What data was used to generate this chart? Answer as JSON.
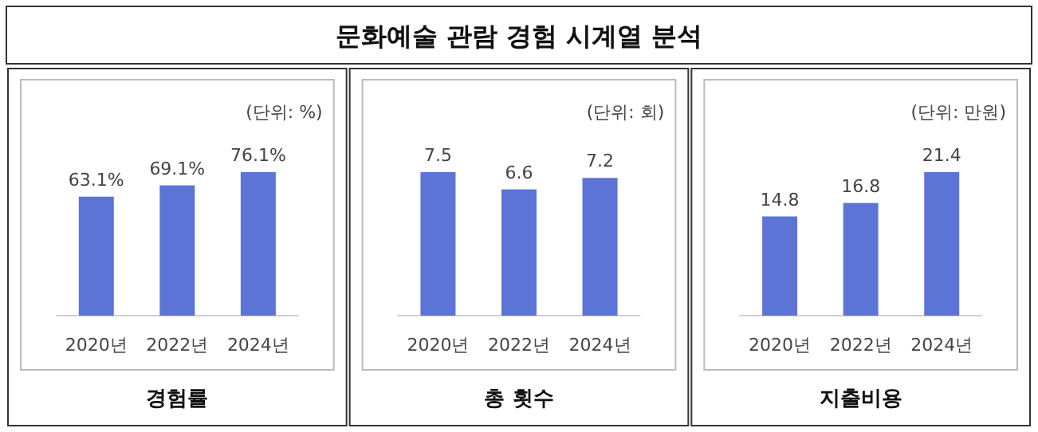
{
  "chart_data": [
    {
      "type": "other",
      "title": "문화예술 관람 경험 시계열 분석"
    },
    {
      "type": "bar",
      "xlabel": "경험률",
      "annotations": [
        "(단위: %)"
      ],
      "categories": [
        "2020년",
        "2022년",
        "2024년"
      ],
      "values": [
        63.1,
        69.1,
        76.1
      ],
      "color": "#5b74d6",
      "data_labels": true,
      "value_labels": [
        "63.1%",
        "69.1%",
        "76.1%"
      ]
    },
    {
      "type": "bar",
      "xlabel": "총 횟수",
      "annotations": [
        "(단위: 회)"
      ],
      "categories": [
        "2020년",
        "2022년",
        "2024년"
      ],
      "values": [
        7.5,
        6.6,
        7.2
      ],
      "color": "#5b74d6",
      "data_labels": true
    },
    {
      "type": "bar",
      "xlabel": "지출비용",
      "annotations": [
        "(단위: 만원)"
      ],
      "categories": [
        "2020년",
        "2022년",
        "2024년"
      ],
      "values": [
        14.8,
        16.8,
        21.4
      ],
      "color": "#5b74d6",
      "data_labels": true
    }
  ]
}
